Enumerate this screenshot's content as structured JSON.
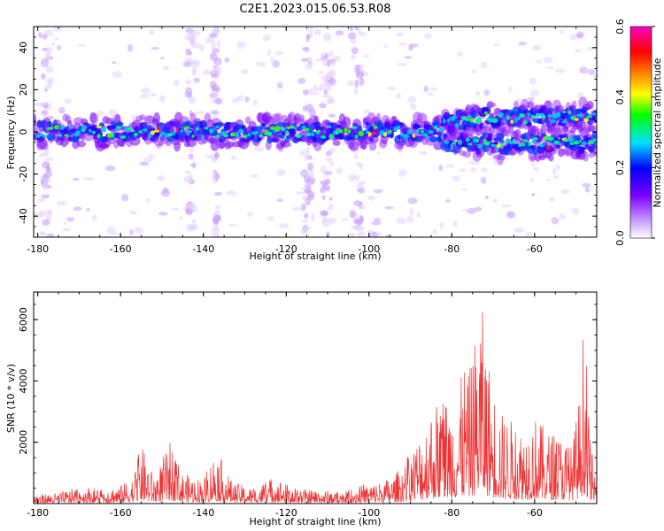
{
  "title": "C2E1.2023.015.06.53.R08",
  "chart_data": [
    {
      "type": "heatmap",
      "xlabel": "Height of straight line (km)",
      "ylabel": "Frequency (Hz)",
      "xlim": [
        -181,
        -45
      ],
      "ylim": [
        -50,
        50
      ],
      "xticks": [
        -180,
        -160,
        -140,
        -120,
        -100,
        -80,
        -60
      ],
      "yticks": [
        -40,
        -20,
        0,
        20,
        40
      ],
      "colorbar": {
        "label": "Normalized spectral amplitude",
        "range": [
          0.0,
          0.6
        ],
        "ticks": [
          "0.0",
          "0.2",
          "0.4",
          "0.6"
        ],
        "colors": [
          "#ffffff",
          "#7a00ff",
          "#0000ff",
          "#00e0ff",
          "#00ff00",
          "#ffff00",
          "#ff8000",
          "#ff0000",
          "#ff00c0"
        ]
      },
      "band": {
        "center_frequency": [
          [
            -181,
            0
          ],
          [
            -120,
            0
          ],
          [
            -85,
            0
          ],
          [
            -75,
            1
          ],
          [
            -60,
            2
          ],
          [
            -45,
            3
          ]
        ],
        "upper_center": [
          [
            -80,
            5
          ],
          [
            -70,
            7
          ],
          [
            -45,
            7
          ]
        ],
        "lower_center": [
          [
            -80,
            -5
          ],
          [
            -70,
            -6
          ],
          [
            -45,
            -5
          ]
        ]
      }
    },
    {
      "type": "line",
      "xlabel": "Height of straight line (km)",
      "ylabel": "SNR (10 * v/v)",
      "xlim": [
        -181,
        -45
      ],
      "ylim": [
        0,
        6900
      ],
      "xticks": [
        -180,
        -160,
        -140,
        -120,
        -100,
        -80,
        -60
      ],
      "yticks": [
        2000,
        4000,
        6000
      ],
      "color": "#ee3333",
      "envelope": [
        [
          -181,
          300
        ],
        [
          -175,
          350
        ],
        [
          -170,
          550
        ],
        [
          -165,
          500
        ],
        [
          -160,
          600
        ],
        [
          -157,
          900
        ],
        [
          -155,
          1950
        ],
        [
          -152,
          900
        ],
        [
          -148,
          2000
        ],
        [
          -145,
          1000
        ],
        [
          -140,
          800
        ],
        [
          -137,
          1800
        ],
        [
          -133,
          700
        ],
        [
          -128,
          500
        ],
        [
          -123,
          900
        ],
        [
          -118,
          500
        ],
        [
          -112,
          450
        ],
        [
          -107,
          400
        ],
        [
          -102,
          600
        ],
        [
          -98,
          700
        ],
        [
          -94,
          900
        ],
        [
          -90,
          1700
        ],
        [
          -87,
          2500
        ],
        [
          -85,
          3200
        ],
        [
          -82,
          3600
        ],
        [
          -80,
          3400
        ],
        [
          -78,
          3900
        ],
        [
          -77,
          4700
        ],
        [
          -76,
          4200
        ],
        [
          -74,
          5800
        ],
        [
          -73,
          6850
        ],
        [
          -72,
          5500
        ],
        [
          -70,
          3900
        ],
        [
          -68,
          3000
        ],
        [
          -66,
          2800
        ],
        [
          -63,
          2500
        ],
        [
          -60,
          2900
        ],
        [
          -57,
          2400
        ],
        [
          -54,
          2300
        ],
        [
          -51,
          1900
        ],
        [
          -49,
          3700
        ],
        [
          -48,
          6500
        ],
        [
          -47,
          3000
        ],
        [
          -46,
          1500
        ],
        [
          -45,
          700
        ]
      ]
    }
  ]
}
